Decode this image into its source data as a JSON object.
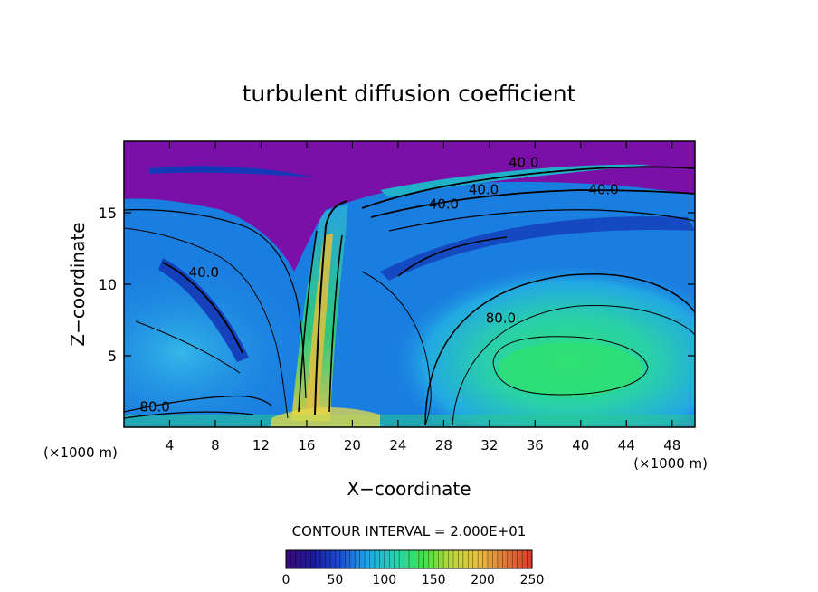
{
  "chart_data": {
    "type": "heatmap",
    "title": "turbulent diffusion coefficient",
    "xlabel": "X−coordinate",
    "ylabel": "Z−coordinate",
    "x_unit_left": "(×1000 m)",
    "x_unit_right": "(×1000 m)",
    "xlim": [
      0,
      50
    ],
    "ylim": [
      0,
      20
    ],
    "xticks": [
      "4",
      "8",
      "12",
      "16",
      "20",
      "24",
      "28",
      "32",
      "36",
      "40",
      "44",
      "48"
    ],
    "yticks": [
      "5",
      "10",
      "15"
    ],
    "contour_interval_text": "CONTOUR INTERVAL = 2.000E+01",
    "contour_labels": [
      {
        "text": "40.0",
        "x": 7.0,
        "y": 10.5
      },
      {
        "text": "40.0",
        "x": 35.0,
        "y": 18.2
      },
      {
        "text": "40.0",
        "x": 31.5,
        "y": 16.3
      },
      {
        "text": "40.0",
        "x": 28.0,
        "y": 15.3
      },
      {
        "text": "40.0",
        "x": 42.0,
        "y": 16.3
      },
      {
        "text": "80.0",
        "x": 33.0,
        "y": 7.3
      },
      {
        "text": "80.0",
        "x": 2.7,
        "y": 1.1
      }
    ],
    "colorbar": {
      "min": 0,
      "max": 250,
      "ticks": [
        "0",
        "50",
        "100",
        "150",
        "200",
        "250"
      ],
      "colors": [
        "#3a0a78",
        "#1a1a9e",
        "#1a4fd2",
        "#1ea8e8",
        "#25d4b0",
        "#3ee04a",
        "#b8d83a",
        "#e8c040",
        "#e07a3a",
        "#d83a2a"
      ]
    },
    "field_colors": {
      "upper_layer": "#7a10a8",
      "background": "#1a7ee0",
      "dark_blue": "#1438b8",
      "cyan": "#28b8e0",
      "green": "#30d878",
      "yellow": "#e8e040",
      "red": "#d84030"
    }
  }
}
